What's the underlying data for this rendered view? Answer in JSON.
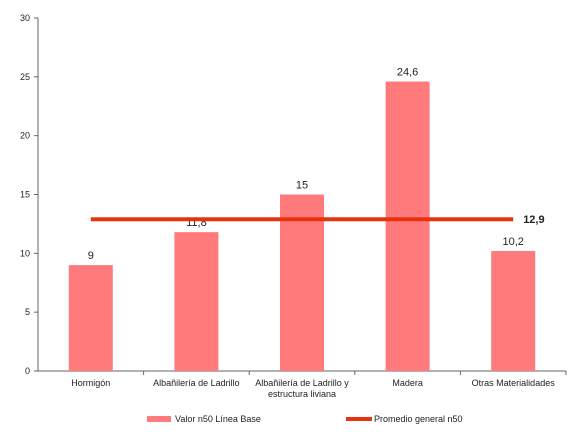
{
  "chart_data": {
    "type": "bar",
    "categories": [
      [
        "Hormigón"
      ],
      [
        "Albañilería de Ladrillo"
      ],
      [
        "Albañilería de Ladrillo y",
        "estructura liviana"
      ],
      [
        "Madera"
      ],
      [
        "Otras Materialidades"
      ]
    ],
    "series": [
      {
        "name": "Valor n50 Línea Base",
        "type": "bar",
        "values": [
          9,
          11.8,
          15,
          24.6,
          10.2
        ],
        "labels": [
          "9",
          "11,8",
          "15",
          "24,6",
          "10,2"
        ],
        "color": "#ff7b7b"
      },
      {
        "name": "Promedio general n50",
        "type": "line",
        "value": 12.9,
        "label": "12,9",
        "color": "#e8330f"
      }
    ],
    "ylim": [
      0,
      30
    ],
    "yticks": [
      0,
      5,
      10,
      15,
      20,
      25,
      30
    ],
    "grid": false,
    "legend": "bottom"
  }
}
